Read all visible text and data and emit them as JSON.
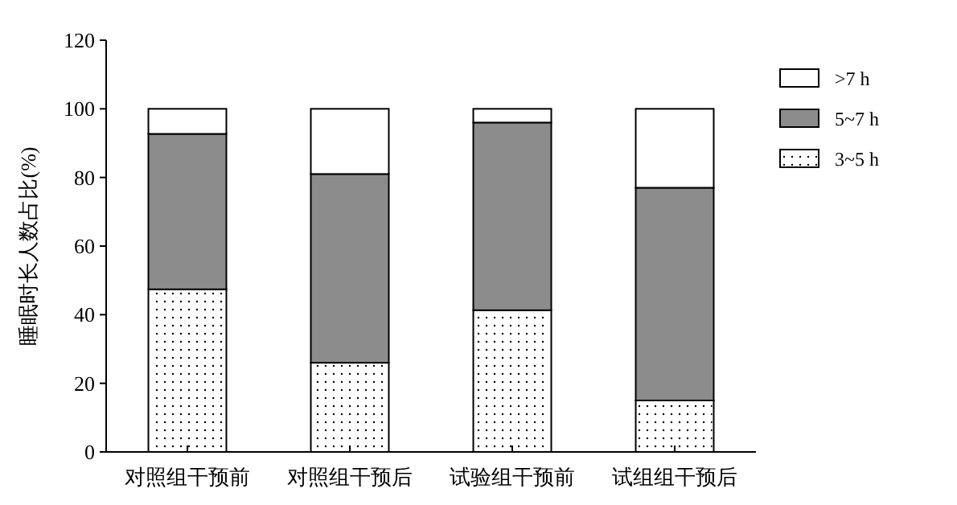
{
  "chart_data": {
    "type": "bar",
    "stacked": true,
    "ylabel": "睡眠时长人数占比(%)",
    "categories": [
      "对照组干预前",
      "对照组干预后",
      "试验组干预前",
      "试组组干预后"
    ],
    "series": [
      {
        "name": "3~5 h",
        "color": "#ffffff",
        "values": [
          47.4,
          26,
          41.3,
          15
        ]
      },
      {
        "name": "5~7 h",
        "color": "#8c8c8c",
        "values": [
          45.3,
          55,
          54.7,
          62
        ]
      },
      {
        "name": ">7 h",
        "color": "#ffffff",
        "values": [
          7.3,
          19,
          4,
          23
        ]
      }
    ],
    "ylim": [
      0,
      120
    ],
    "yticks": [
      0,
      20,
      40,
      60,
      80,
      100,
      120
    ],
    "grid": false,
    "legend": "top right"
  }
}
